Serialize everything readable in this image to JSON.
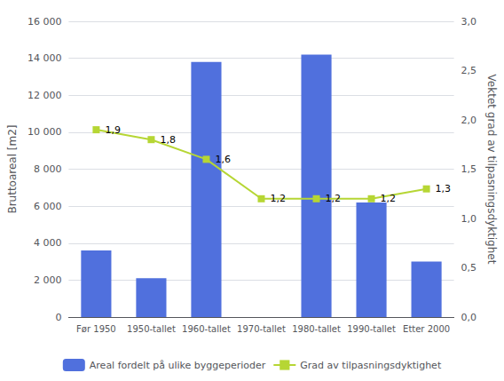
{
  "chart_data": {
    "type": "bar",
    "categories": [
      "Før 1950",
      "1950-tallet",
      "1960-tallet",
      "1970-tallet",
      "1980-tallet",
      "1990-tallet",
      "Etter 2000"
    ],
    "series": [
      {
        "name": "Areal fordelt på ulike byggeperioder",
        "type": "bar",
        "values": [
          3600,
          2100,
          13800,
          0,
          14200,
          6200,
          3000
        ]
      },
      {
        "name": "Grad av tilpasningsdyktighet",
        "type": "line",
        "axis": "y2",
        "marker": "square",
        "values": [
          1.9,
          1.8,
          1.6,
          1.2,
          1.2,
          1.2,
          1.3
        ],
        "data_labels": true,
        "value_labels": [
          "1,9",
          "1,8",
          "1,6",
          "1,2",
          "1,2",
          "1,2",
          "1,3"
        ]
      }
    ],
    "ylabel": "Bruttoareal [m2]",
    "y2label": "Vektet grad av tilpasningsdyktighet",
    "ylim": [
      0,
      16000
    ],
    "yticks": [
      0,
      {
        "value": 2000,
        "label": "2 000"
      },
      {
        "value": 4000,
        "label": "4 000"
      },
      {
        "value": 6000,
        "label": "6 000"
      },
      {
        "value": 8000,
        "label": "8 000"
      },
      {
        "value": 10000,
        "label": "10 000"
      },
      {
        "value": 12000,
        "label": "12 000"
      },
      {
        "value": 14000,
        "label": "14 000"
      },
      {
        "value": 16000,
        "label": "16 000"
      }
    ],
    "y2lim": [
      0.0,
      3.0
    ],
    "y2ticks": [
      {
        "value": 0.0,
        "label": "0,0"
      },
      {
        "value": 0.5,
        "label": "0,5"
      },
      {
        "value": 1.0,
        "label": "1,0"
      },
      {
        "value": 1.5,
        "label": "1,5"
      },
      {
        "value": 2.0,
        "label": "2,0"
      },
      {
        "value": 2.5,
        "label": "2,5"
      },
      {
        "value": 3.0,
        "label": "3,0"
      }
    ],
    "grid": true,
    "legend": "bottom"
  }
}
